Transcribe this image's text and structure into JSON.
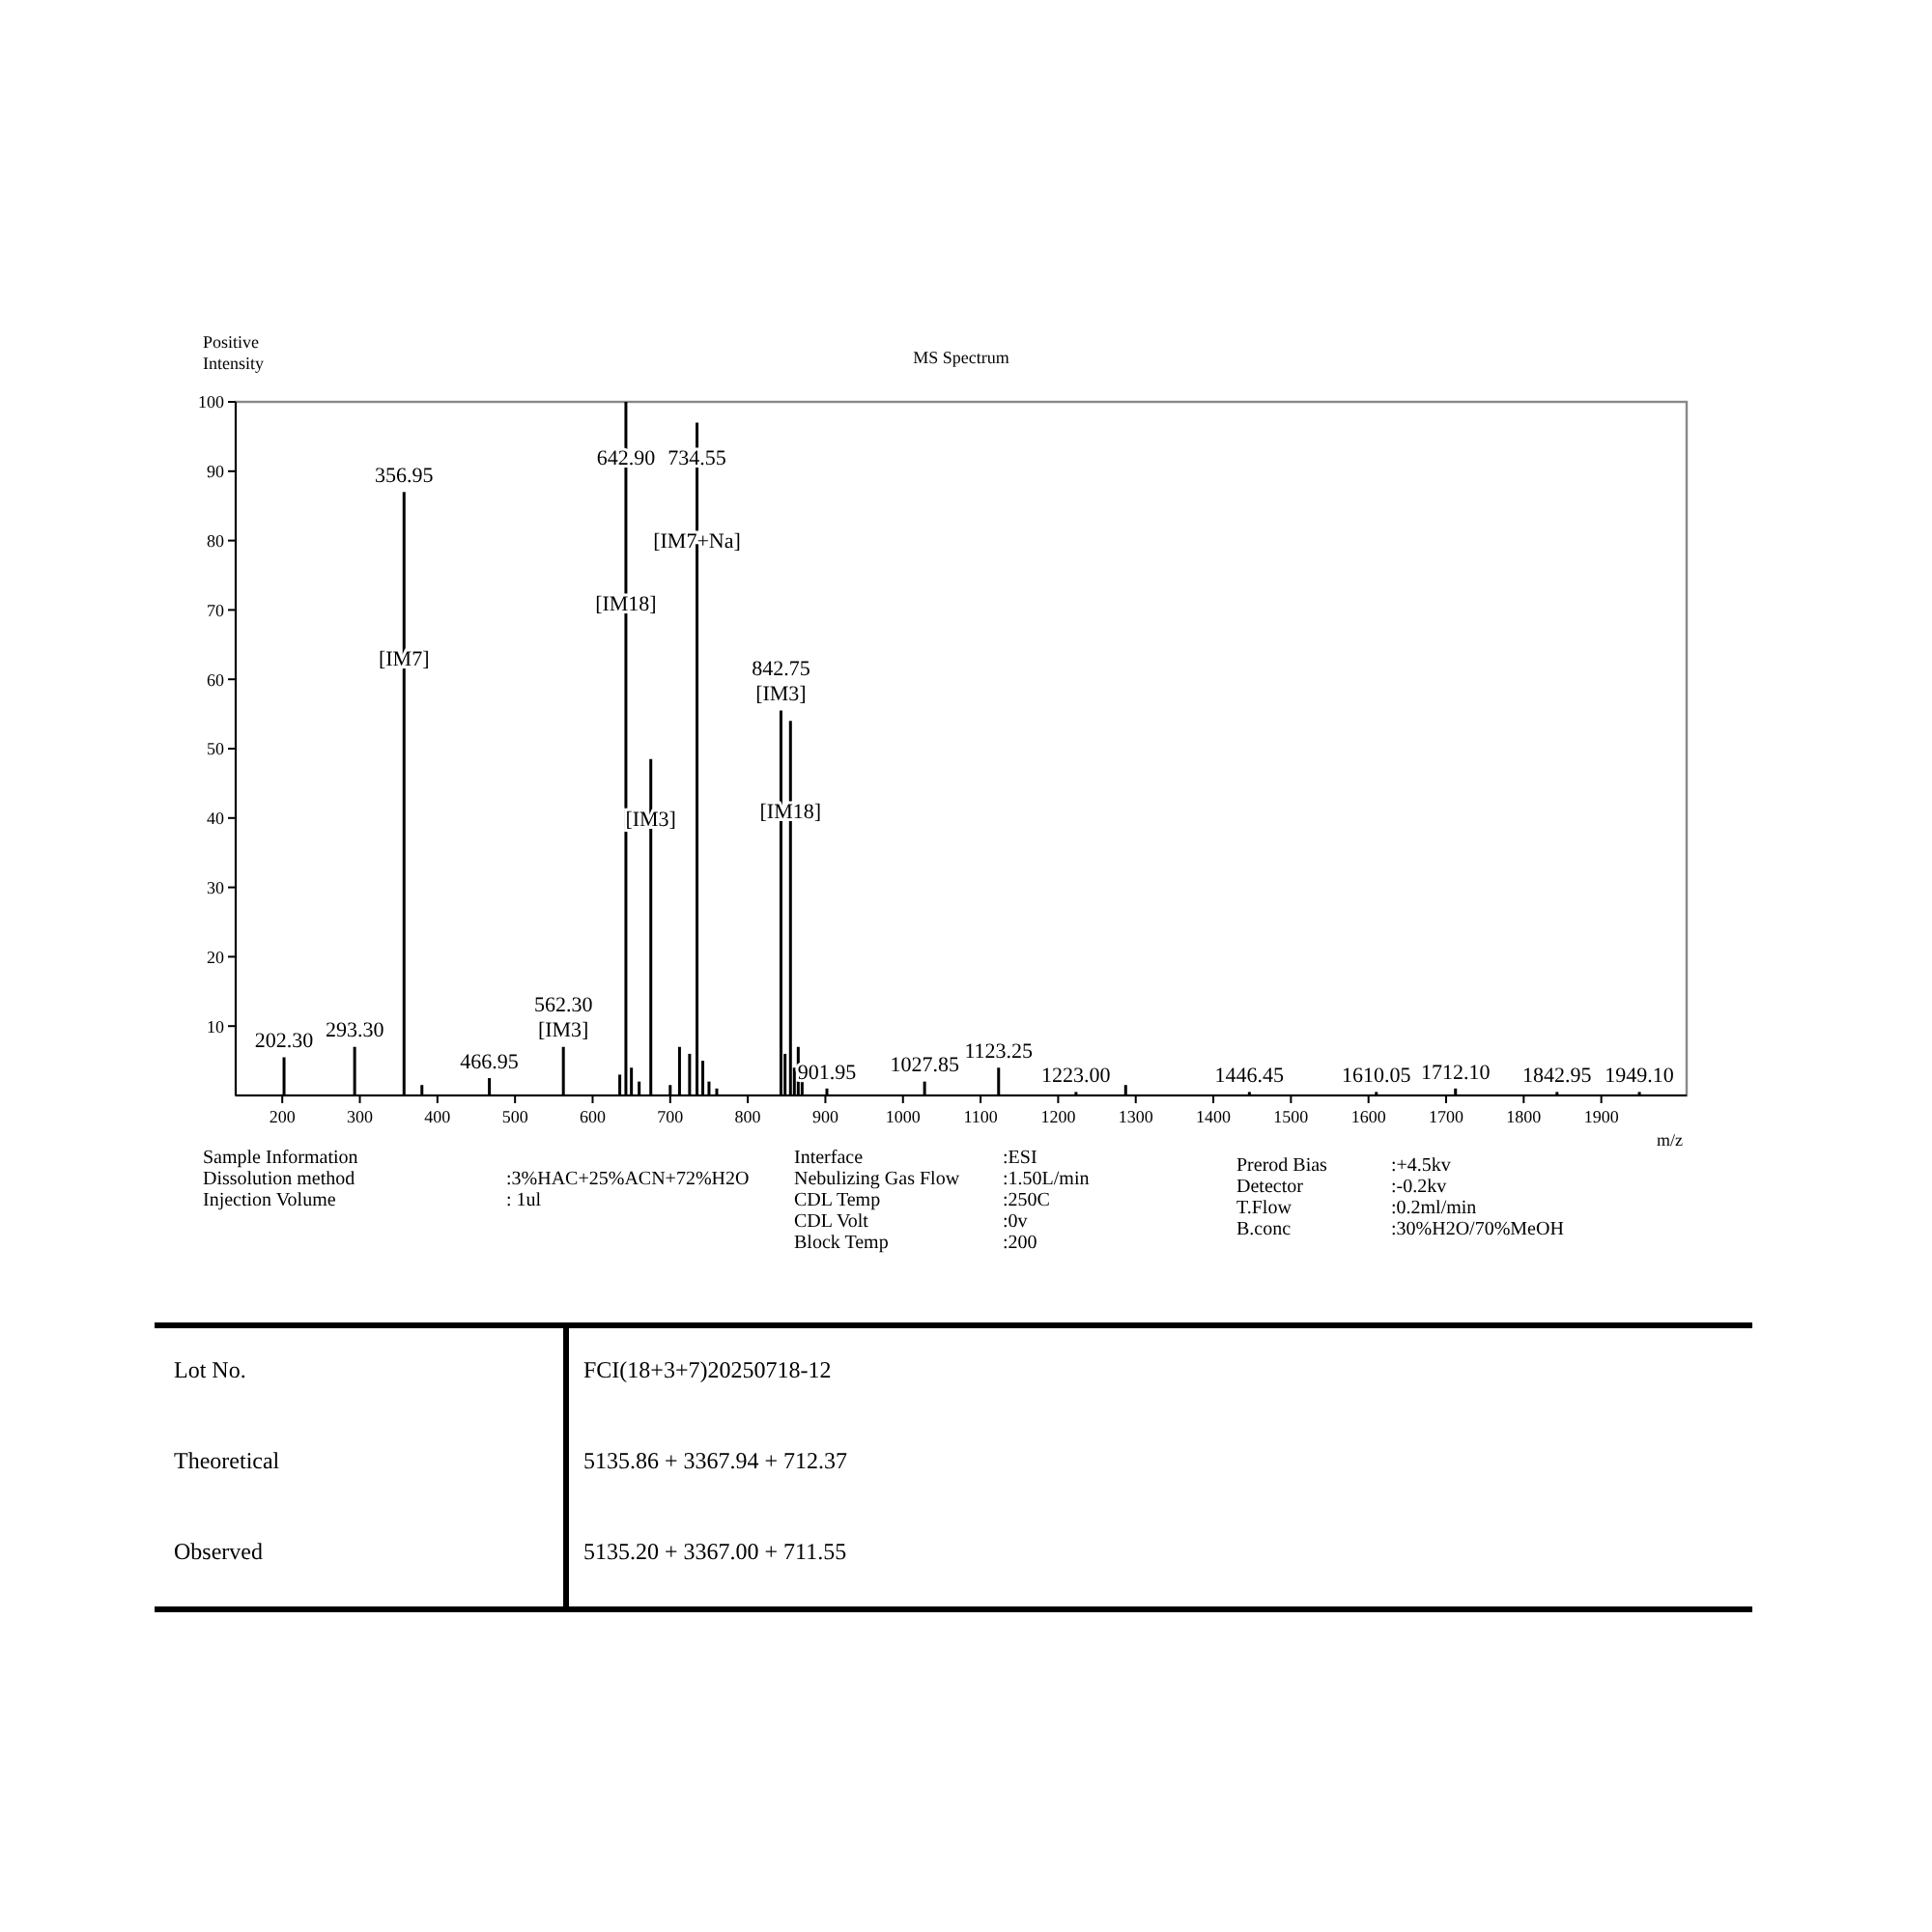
{
  "chart_data": {
    "type": "bar",
    "title": "MS Spectrum",
    "xlabel": "m/z",
    "ylabel": "Positive Intensity",
    "color": "#000000",
    "x": [
      202.3,
      293.3,
      356.95,
      380,
      466.95,
      562.3,
      635,
      642.9,
      650,
      660,
      675,
      700,
      712,
      725,
      734.55,
      742,
      750,
      760,
      842.75,
      848,
      855,
      860,
      865,
      870,
      901.95,
      1027.85,
      1123.25,
      1223,
      1287,
      1446.45,
      1610.05,
      1712.1,
      1842.95,
      1949.1
    ],
    "values": [
      5.5,
      7,
      87,
      1.5,
      2.5,
      7,
      3,
      100,
      4,
      2,
      48.5,
      1.5,
      7,
      6,
      97,
      5,
      2,
      1,
      55.5,
      6,
      54,
      4,
      7,
      2,
      1,
      2,
      4,
      0.5,
      1.5,
      0.5,
      0.5,
      1,
      0.5,
      0.5
    ],
    "xlim": [
      140,
      2010
    ],
    "ylim": [
      0,
      100
    ],
    "xticks": [
      200,
      300,
      400,
      500,
      600,
      700,
      800,
      900,
      1000,
      1100,
      1200,
      1300,
      1400,
      1500,
      1600,
      1700,
      1800,
      1900
    ],
    "yticks": [
      10,
      20,
      30,
      40,
      50,
      60,
      70,
      80,
      90,
      100
    ],
    "annotations": [
      {
        "text": "202.30",
        "x": 202.3,
        "y": 5.5
      },
      {
        "text": "293.30",
        "x": 293.3,
        "y": 7
      },
      {
        "text": "356.95",
        "x": 356.95,
        "y": 87
      },
      {
        "text": "[IM7]",
        "x": 356.95,
        "y": 63
      },
      {
        "text": "466.95",
        "x": 466.95,
        "y": 2.5
      },
      {
        "text": "562.30",
        "x": 562.3,
        "y": 7
      },
      {
        "text": "[IM3]",
        "x": 562.3,
        "y": 7
      },
      {
        "text": "642.90",
        "x": 642.9,
        "y": 92
      },
      {
        "text": "[IM18]",
        "x": 642.9,
        "y": 71
      },
      {
        "text": "[IM3]",
        "x": 675,
        "y": 40
      },
      {
        "text": "734.55",
        "x": 734.55,
        "y": 92
      },
      {
        "text": "[IM7+Na]",
        "x": 734.55,
        "y": 80
      },
      {
        "text": "842.75",
        "x": 842.75,
        "y": 55.5
      },
      {
        "text": "[IM3]",
        "x": 842.75,
        "y": 55.5
      },
      {
        "text": "[IM18]",
        "x": 855,
        "y": 41
      },
      {
        "text": "901.95",
        "x": 901.95,
        "y": 1
      },
      {
        "text": "1027.85",
        "x": 1027.85,
        "y": 2
      },
      {
        "text": "1123.25",
        "x": 1123.25,
        "y": 4
      },
      {
        "text": "1223.00",
        "x": 1223,
        "y": 0.5
      },
      {
        "text": "1446.45",
        "x": 1446.45,
        "y": 0.5
      },
      {
        "text": "1610.05",
        "x": 1610.05,
        "y": 0.5
      },
      {
        "text": "1712.10",
        "x": 1712.1,
        "y": 1
      },
      {
        "text": "1842.95",
        "x": 1842.95,
        "y": 0.5
      },
      {
        "text": "1949.10",
        "x": 1949.1,
        "y": 0.5
      },
      "Sample Information",
      "Dissolution method",
      ":3%HAC+25%ACN+72%H2O",
      "Injection Volume",
      ": 1ul",
      "Interface",
      ":ESI",
      "Nebulizing Gas Flow",
      ":1.50L/min",
      "CDL Temp",
      ":250C",
      "CDL Volt",
      ":0v",
      "Block Temp",
      ":200",
      "Prerod Bias",
      ":+4.5kv",
      "Detector",
      ":-0.2kv",
      "T.Flow",
      ":0.2ml/min",
      "B.conc",
      ":30%H2O/70%MeOH",
      "Lot No.",
      "FCI(18+3+7)20250718-12",
      "Theoretical",
      "5135.86 + 3367.94 + 712.37",
      "Observed",
      "5135.20 + 3367.00 + 711.55"
    ]
  }
}
